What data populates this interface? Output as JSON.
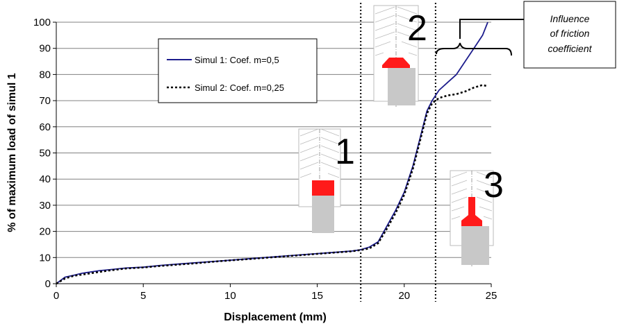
{
  "chart_data": {
    "type": "line",
    "title": "",
    "xlabel": "Displacement (mm)",
    "ylabel": "% of maximum load of simul 1",
    "xlim": [
      0,
      25
    ],
    "ylim": [
      0,
      100
    ],
    "x_ticks": [
      "0",
      "5",
      "10",
      "15",
      "20",
      "25"
    ],
    "y_ticks": [
      "0",
      "10",
      "20",
      "30",
      "40",
      "50",
      "60",
      "70",
      "80",
      "90",
      "100"
    ],
    "grid": "horizontal",
    "legend_position": "upper-left",
    "colors": {
      "simul1": "#1c1c8c",
      "simul2": "#000000",
      "die_fill": "#ffffff",
      "billet": "#c8c8c8",
      "deformed": "#ff1a1a"
    },
    "series": [
      {
        "name": "Simul 1: Coef. m=0,5",
        "style": "solid",
        "x": [
          0,
          0.5,
          1,
          1.5,
          2,
          2.5,
          3,
          4,
          5,
          6,
          7,
          8,
          9,
          10,
          11,
          12,
          13,
          14,
          15,
          16,
          17,
          17.5,
          18,
          18.5,
          19,
          19.5,
          20,
          20.5,
          21,
          21.3,
          21.6,
          22,
          22.5,
          23,
          23.5,
          24,
          24.5,
          24.8
        ],
        "y": [
          0,
          2.5,
          3.2,
          4,
          4.5,
          5,
          5.3,
          6,
          6.3,
          7,
          7.5,
          8,
          8.5,
          9,
          9.5,
          10,
          10.5,
          11,
          11.5,
          12,
          12.5,
          13,
          14,
          16,
          22,
          28,
          35,
          45,
          58,
          66,
          70,
          74,
          77,
          80,
          85,
          90,
          95,
          100
        ]
      },
      {
        "name": "Simul 2: Coef. m=0,25",
        "style": "dotted",
        "x": [
          0,
          0.5,
          1,
          1.5,
          2,
          2.5,
          3,
          4,
          5,
          6,
          7,
          8,
          9,
          10,
          11,
          12,
          13,
          14,
          15,
          16,
          17,
          17.5,
          18,
          18.5,
          19,
          19.5,
          20,
          20.5,
          21,
          21.3,
          21.6,
          22,
          22.5,
          23,
          23.5,
          24,
          24.5,
          24.8
        ],
        "y": [
          0,
          2,
          3,
          3.5,
          4,
          4.5,
          5,
          5.8,
          6.2,
          6.8,
          7.3,
          7.8,
          8.4,
          8.9,
          9.4,
          9.9,
          10.4,
          10.9,
          11.4,
          11.9,
          12.4,
          12.9,
          13.5,
          15.5,
          21,
          27,
          34,
          44,
          57,
          65,
          69,
          71,
          72,
          72.5,
          73.5,
          75,
          76,
          75.5
        ]
      }
    ],
    "markers": [
      {
        "x": 17.5,
        "style": "dotted",
        "label": ""
      },
      {
        "x": 21.8,
        "style": "dotted",
        "label": ""
      }
    ],
    "stages": [
      {
        "id": "stage-1",
        "label": "1"
      },
      {
        "id": "stage-2",
        "label": "2"
      },
      {
        "id": "stage-3",
        "label": "3"
      }
    ],
    "annotation": {
      "lines": [
        "Influence",
        "of friction",
        "coefficient"
      ]
    }
  }
}
